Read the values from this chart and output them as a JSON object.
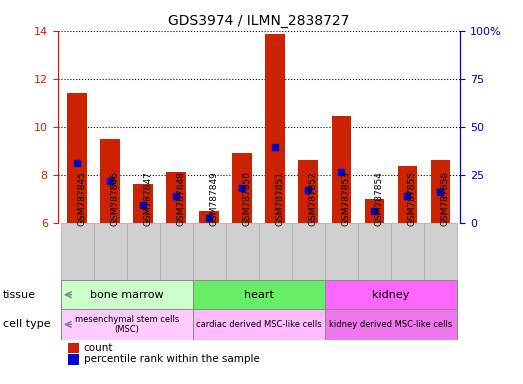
{
  "title": "GDS3974 / ILMN_2838727",
  "samples": [
    "GSM787845",
    "GSM787846",
    "GSM787847",
    "GSM787848",
    "GSM787849",
    "GSM787850",
    "GSM787851",
    "GSM787852",
    "GSM787853",
    "GSM787854",
    "GSM787855",
    "GSM787856"
  ],
  "count_values": [
    11.4,
    9.5,
    7.6,
    8.1,
    6.5,
    8.9,
    13.85,
    8.6,
    10.45,
    7.0,
    8.35,
    8.6
  ],
  "percentile_values": [
    8.5,
    7.75,
    6.75,
    7.1,
    6.2,
    7.45,
    9.15,
    7.35,
    8.1,
    6.5,
    7.1,
    7.3
  ],
  "ymin": 6,
  "ymax": 14,
  "yticks": [
    6,
    8,
    10,
    12,
    14
  ],
  "y2min": 0,
  "y2max": 100,
  "y2ticks": [
    0,
    25,
    50,
    75,
    100
  ],
  "bar_color": "#cc2200",
  "dot_color": "#0000cc",
  "tissue_groups": [
    {
      "label": "bone marrow",
      "start": 0,
      "end": 4,
      "color": "#ccffcc"
    },
    {
      "label": "heart",
      "start": 4,
      "end": 8,
      "color": "#66ee66"
    },
    {
      "label": "kidney",
      "start": 8,
      "end": 12,
      "color": "#ff66ff"
    }
  ],
  "celltype_groups": [
    {
      "label": "mesenchymal stem cells\n(MSC)",
      "start": 0,
      "end": 4,
      "color": "#ffccff"
    },
    {
      "label": "cardiac derived MSC-like cells",
      "start": 4,
      "end": 8,
      "color": "#ffbbff"
    },
    {
      "label": "kidney derived MSC-like cells",
      "start": 8,
      "end": 12,
      "color": "#ee77ee"
    }
  ],
  "xtick_bg_color": "#d0d0d0",
  "legend_count_label": "count",
  "legend_pct_label": "percentile rank within the sample",
  "tissue_label": "tissue",
  "celltype_label": "cell type",
  "bg_color": "#ffffff",
  "grid_color": "#000000",
  "bar_width": 0.6,
  "axis_label_color_left": "#cc2200",
  "axis_label_color_right": "#0000cc"
}
